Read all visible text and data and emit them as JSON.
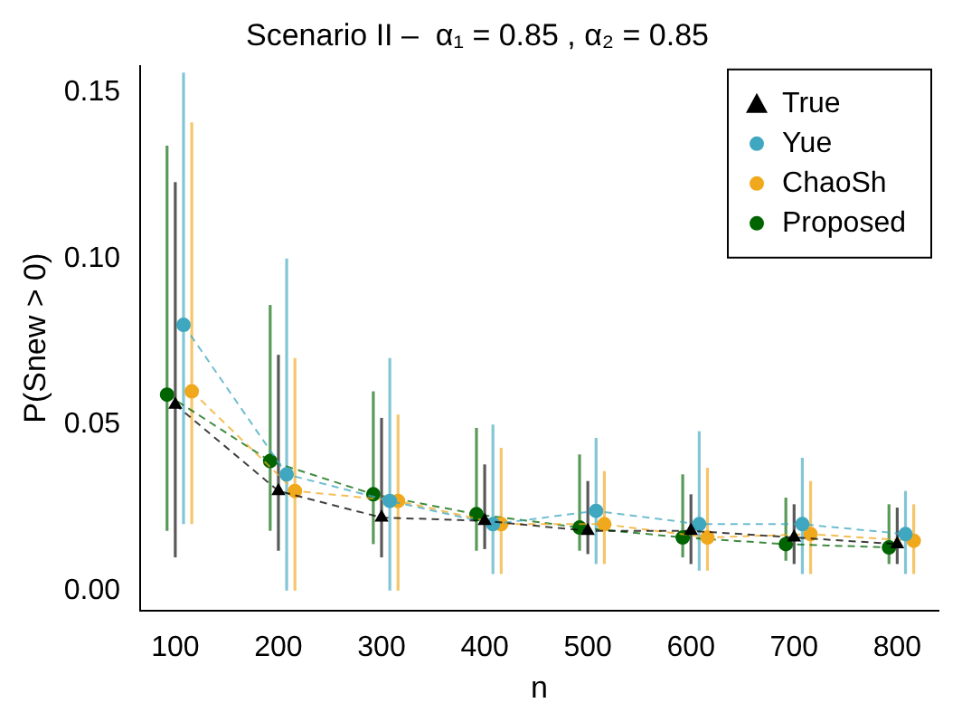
{
  "chart_data": {
    "type": "line",
    "title": "Scenario II –  α₁ = 0.85 , α₂ = 0.85",
    "xlabel": "n",
    "ylabel": "P(Snew > 0)",
    "xlim": [
      66,
      840
    ],
    "xticks": [
      100,
      200,
      300,
      400,
      500,
      600,
      700,
      800
    ],
    "ylim": [
      -0.006,
      0.158
    ],
    "yticks": [
      {
        "value": 0,
        "label": "0.00"
      },
      {
        "value": 0.05,
        "label": "0.05"
      },
      {
        "value": 0.1,
        "label": "0.10"
      },
      {
        "value": 0.15,
        "label": "0.15"
      }
    ],
    "grid": false,
    "legend": "top right",
    "line_style": "dashed",
    "series": [
      {
        "name": "True",
        "color": "#000000",
        "marker": "triangle",
        "x": [
          100,
          200,
          300,
          400,
          500,
          600,
          700,
          800
        ],
        "values": [
          0.056,
          0.03,
          0.022,
          0.021,
          0.018,
          0.018,
          0.016,
          0.014
        ],
        "errors": [
          [
            0.01,
            0.123
          ],
          [
            0.012,
            0.071
          ],
          [
            0.01,
            0.052
          ],
          [
            0.0125,
            0.038
          ],
          [
            0.011,
            0.033
          ],
          [
            0.008,
            0.029
          ],
          [
            0.008,
            0.026
          ],
          [
            0.008,
            0.025
          ]
        ]
      },
      {
        "name": "Yue",
        "color": "#3fa7c0",
        "marker": "circle",
        "x": [
          108,
          208,
          308,
          408,
          508,
          608,
          708,
          808
        ],
        "values": [
          0.08,
          0.035,
          0.027,
          0.02,
          0.024,
          0.02,
          0.02,
          0.017
        ],
        "errors": [
          [
            0.02,
            0.156
          ],
          [
            0,
            0.1
          ],
          [
            0,
            0.07
          ],
          [
            0.005,
            0.05
          ],
          [
            0.008,
            0.046
          ],
          [
            0.006,
            0.048
          ],
          [
            0.005,
            0.04
          ],
          [
            0.005,
            0.03
          ]
        ]
      },
      {
        "name": "ChaoSh",
        "color": "#f0a81c",
        "marker": "circle",
        "x": [
          116,
          216,
          316,
          416,
          516,
          616,
          716,
          816
        ],
        "values": [
          0.06,
          0.03,
          0.027,
          0.02,
          0.02,
          0.016,
          0.017,
          0.015
        ],
        "errors": [
          [
            0.02,
            0.141
          ],
          [
            0,
            0.07
          ],
          [
            0,
            0.053
          ],
          [
            0.005,
            0.043
          ],
          [
            0.008,
            0.036
          ],
          [
            0.006,
            0.037
          ],
          [
            0.005,
            0.033
          ],
          [
            0.005,
            0.026
          ]
        ]
      },
      {
        "name": "Proposed",
        "color": "#006400",
        "marker": "circle",
        "x": [
          92,
          192,
          292,
          392,
          492,
          592,
          692,
          792
        ],
        "values": [
          0.059,
          0.039,
          0.029,
          0.023,
          0.019,
          0.016,
          0.014,
          0.013
        ],
        "errors": [
          [
            0.018,
            0.134
          ],
          [
            0.018,
            0.086
          ],
          [
            0.014,
            0.06
          ],
          [
            0.012,
            0.049
          ],
          [
            0.012,
            0.041
          ],
          [
            0.01,
            0.035
          ],
          [
            0.009,
            0.028
          ],
          [
            0.008,
            0.026
          ]
        ]
      }
    ]
  }
}
